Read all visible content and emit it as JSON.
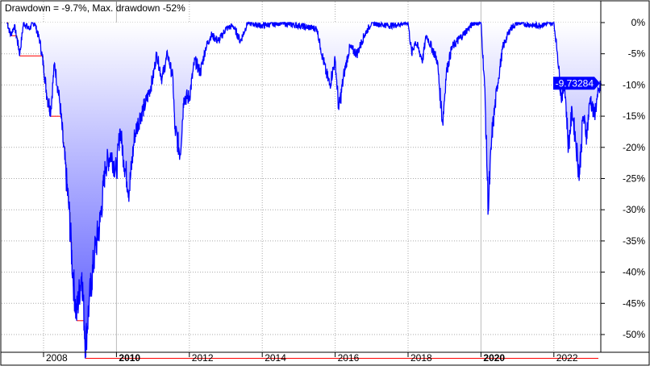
{
  "chart_data": {
    "type": "area",
    "title": "Drawdown = -9.7%, Max. drawdown -52%",
    "current_value_label": "-9.73284",
    "ylim": [
      -53,
      2
    ],
    "xlim": [
      2007.0,
      2023.35
    ],
    "y_ticks": [
      0,
      -5,
      -10,
      -15,
      -20,
      -25,
      -30,
      -35,
      -40,
      -45,
      -50
    ],
    "y_tick_labels": [
      "0%",
      "-5%",
      "-10%",
      "-15%",
      "-20%",
      "-25%",
      "-30%",
      "-35%",
      "-40%",
      "-45%",
      "-50%"
    ],
    "x_ticks": [
      2008,
      2010,
      2012,
      2014,
      2016,
      2018,
      2020,
      2022
    ],
    "x_tick_labels": [
      "2008",
      "2010",
      "2012",
      "2014",
      "2016",
      "2018",
      "2020",
      "2022"
    ],
    "bold_x_ticks": [
      "2010",
      "2020"
    ],
    "grid": true,
    "colors": {
      "line": "#0000ff",
      "fill_top": "#ffffff",
      "fill_bottom": "#5555ff",
      "max_drawdown_line": "#ff0000",
      "label_bg": "#0000ff"
    },
    "series": [
      {
        "x": [
          2007.0,
          2007.1,
          2007.2,
          2007.35,
          2007.45,
          2007.6,
          2007.75,
          2007.9,
          2008.0,
          2008.1,
          2008.2,
          2008.3,
          2008.45,
          2008.55,
          2008.7,
          2008.8,
          2008.9,
          2009.05,
          2009.15,
          2009.25,
          2009.4,
          2009.55,
          2009.7,
          2009.85,
          2010.0,
          2010.1,
          2010.2,
          2010.35,
          2010.5,
          2010.65,
          2010.8,
          2011.0,
          2011.1,
          2011.25,
          2011.4,
          2011.55,
          2011.6,
          2011.75,
          2011.85,
          2012.0,
          2012.15,
          2012.3,
          2012.45,
          2012.6,
          2012.8,
          2013.0,
          2013.2,
          2013.4,
          2013.6,
          2014.0,
          2014.5,
          2015.0,
          2015.5,
          2015.6,
          2015.75,
          2015.85,
          2016.0,
          2016.1,
          2016.25,
          2016.4,
          2016.6,
          2016.8,
          2017.0,
          2017.5,
          2018.0,
          2018.1,
          2018.2,
          2018.4,
          2018.5,
          2018.8,
          2018.9,
          2018.95,
          2019.05,
          2019.2,
          2019.5,
          2019.8,
          2020.0,
          2020.1,
          2020.2,
          2020.3,
          2020.45,
          2020.6,
          2020.8,
          2021.0,
          2021.5,
          2022.0,
          2022.1,
          2022.2,
          2022.3,
          2022.4,
          2022.5,
          2022.6,
          2022.7,
          2022.8,
          2022.9,
          2023.0,
          2023.1,
          2023.2,
          2023.3
        ],
        "y": [
          0,
          -2,
          -0.5,
          -5,
          0,
          -1,
          0,
          -3,
          -7,
          -12,
          -14,
          -6.5,
          -13,
          -20,
          -30,
          -40,
          -47,
          -40,
          -52,
          -45,
          -37,
          -32,
          -23,
          -21,
          -24,
          -17,
          -22,
          -27,
          -18,
          -15,
          -13,
          -9,
          -5,
          -9,
          -5,
          -9,
          -17,
          -21,
          -12,
          -12,
          -6,
          -8,
          -4,
          -2,
          -3,
          -1,
          -0.5,
          -3,
          0,
          -0.5,
          0,
          -0.5,
          -1,
          -4,
          -8,
          -10,
          -6,
          -14,
          -8,
          -4,
          -5,
          -2,
          0,
          -0.5,
          0,
          -5,
          -3,
          -6,
          -2,
          -6,
          -13,
          -16,
          -8,
          -4,
          -2,
          0,
          0,
          -10,
          -30,
          -18,
          -10,
          -4,
          -1,
          0,
          -0.5,
          0,
          -5,
          -12,
          -10,
          -20,
          -14,
          -19,
          -24.5,
          -15,
          -18,
          -12,
          -15,
          -12,
          -9.73
        ]
      }
    ]
  }
}
